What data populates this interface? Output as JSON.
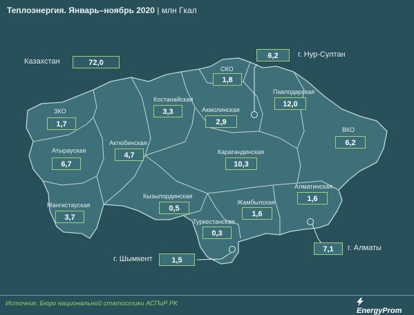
{
  "header": {
    "title": "Теплоэнергия. Январь–ноябрь 2020",
    "unit": "| млн Гкал"
  },
  "total": {
    "label": "Казахстан",
    "value": "72,0"
  },
  "regions": {
    "zko": {
      "label": "ЗКО",
      "value": "1,7"
    },
    "atyrau": {
      "label": "Атырауская",
      "value": "6,7"
    },
    "mangistau": {
      "label": "Мангистауская",
      "value": "3,7"
    },
    "aktobe": {
      "label": "Актюбинская",
      "value": "4,7"
    },
    "kostanay": {
      "label": "Костанайская",
      "value": "3,3"
    },
    "sko": {
      "label": "СКО",
      "value": "1,8"
    },
    "akmola": {
      "label": "Акмолинская",
      "value": "2,9"
    },
    "pavlodar": {
      "label": "Павлодарская",
      "value": "12,0"
    },
    "vko": {
      "label": "ВКО",
      "value": "6,2"
    },
    "karaganda": {
      "label": "Карагандинская",
      "value": "10,3"
    },
    "kyzylorda": {
      "label": "Кызылординская",
      "value": "0,5"
    },
    "zhambyl": {
      "label": "Жамбылская",
      "value": "1,6"
    },
    "almaty_reg": {
      "label": "Алматинская",
      "value": "1,6"
    },
    "turkestan": {
      "label": "Туркестанская",
      "value": "0,3"
    }
  },
  "cities": {
    "nursultan": {
      "label": "г. Нур-Султан",
      "value": "6,2"
    },
    "almaty": {
      "label": "г. Алматы",
      "value": "7,1"
    },
    "shymkent": {
      "label": "г. Шымкент",
      "value": "1,5"
    }
  },
  "footer": {
    "source": "Источник: Бюро национальной статистики АСПиР РК",
    "logo": "EnergyProm"
  },
  "colors": {
    "background": "#28505b",
    "land": "#3e7079",
    "border": "#b9d3d2",
    "accent": "#a7cf6e"
  }
}
